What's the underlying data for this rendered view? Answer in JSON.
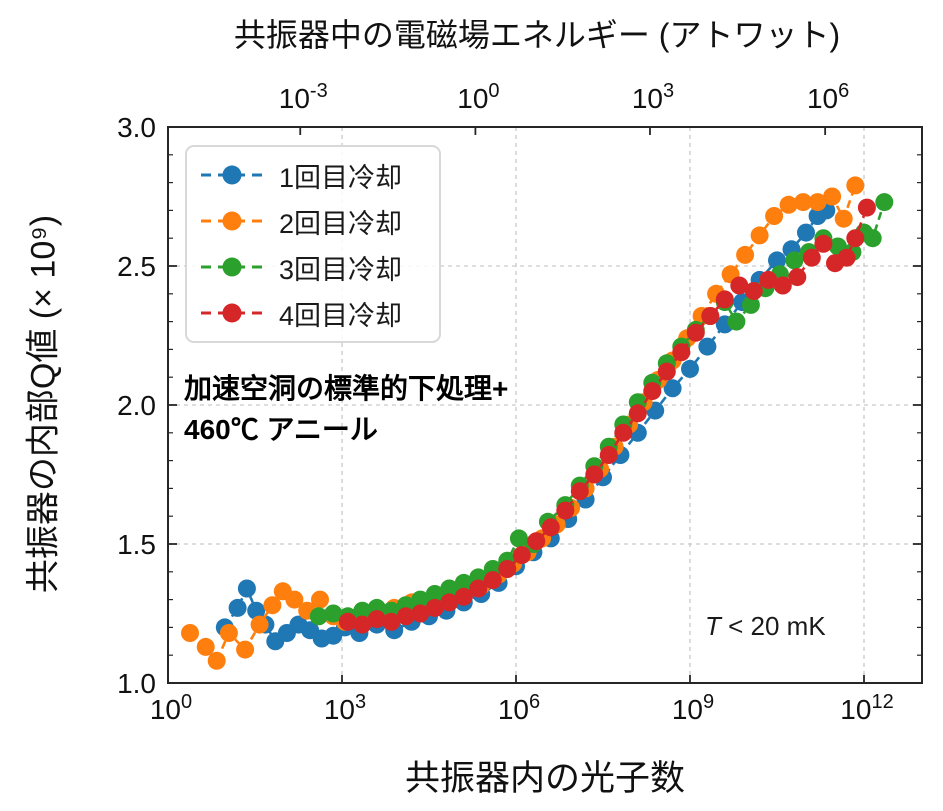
{
  "chart_data": {
    "type": "scatter",
    "x_scale": "log",
    "xlim_decades": [
      0,
      13
    ],
    "ylim": [
      1.0,
      3.0
    ],
    "grid": true,
    "legend_position": "upper left",
    "x_axis_bottom": {
      "label": "共振器内の光子数",
      "tick_base": 10,
      "tick_exponents": [
        0,
        3,
        6,
        9,
        12
      ]
    },
    "x_axis_top": {
      "label": "共振器中の電磁場エネルギー (アトワット)",
      "tick_base": 10,
      "tick_exponents": [
        -3,
        0,
        3,
        6
      ],
      "tick_positions_bottom_decades": [
        2.28,
        5.3,
        8.31,
        11.33
      ]
    },
    "y_axis": {
      "label": "共振器の内部Q値 (× 10⁹)",
      "ticks": [
        1.0,
        1.5,
        2.0,
        2.5,
        3.0
      ],
      "minor_step": 0.1
    },
    "annotations": {
      "treatment_line1": "加速空洞の標準的下処理+",
      "treatment_line2": "460℃ アニール",
      "temp_symbol": "T",
      "temp_rest": " < 20 mK"
    },
    "series": [
      {
        "name": "1回目冷却",
        "color": "#1f77b4",
        "marker": "circle",
        "linestyle": "dashed",
        "points_log10x_y": [
          [
            0.98,
            1.2
          ],
          [
            1.2,
            1.27
          ],
          [
            1.36,
            1.34
          ],
          [
            1.52,
            1.26
          ],
          [
            1.68,
            1.21
          ],
          [
            1.85,
            1.15
          ],
          [
            2.05,
            1.18
          ],
          [
            2.25,
            1.21
          ],
          [
            2.45,
            1.19
          ],
          [
            2.65,
            1.16
          ],
          [
            2.85,
            1.17
          ],
          [
            3.05,
            1.2
          ],
          [
            3.3,
            1.18
          ],
          [
            3.6,
            1.21
          ],
          [
            3.9,
            1.19
          ],
          [
            4.2,
            1.22
          ],
          [
            4.5,
            1.24
          ],
          [
            4.8,
            1.26
          ],
          [
            5.1,
            1.29
          ],
          [
            5.4,
            1.32
          ],
          [
            5.7,
            1.36
          ],
          [
            6.0,
            1.42
          ],
          [
            6.3,
            1.47
          ],
          [
            6.6,
            1.52
          ],
          [
            6.9,
            1.59
          ],
          [
            7.2,
            1.66
          ],
          [
            7.5,
            1.74
          ],
          [
            7.8,
            1.82
          ],
          [
            8.1,
            1.9
          ],
          [
            8.4,
            1.98
          ],
          [
            8.7,
            2.06
          ],
          [
            9.0,
            2.13
          ],
          [
            9.3,
            2.21
          ],
          [
            9.6,
            2.29
          ],
          [
            9.9,
            2.37
          ],
          [
            10.2,
            2.45
          ],
          [
            10.5,
            2.52
          ],
          [
            10.75,
            2.56
          ],
          [
            11.0,
            2.62
          ],
          [
            11.2,
            2.68
          ],
          [
            11.35,
            2.7
          ]
        ]
      },
      {
        "name": "2回目冷却",
        "color": "#ff7f0e",
        "marker": "circle",
        "linestyle": "dashed",
        "points_log10x_y": [
          [
            0.38,
            1.18
          ],
          [
            0.65,
            1.13
          ],
          [
            0.84,
            1.08
          ],
          [
            1.05,
            1.18
          ],
          [
            1.33,
            1.12
          ],
          [
            1.58,
            1.21
          ],
          [
            1.8,
            1.28
          ],
          [
            1.98,
            1.33
          ],
          [
            2.18,
            1.3
          ],
          [
            2.4,
            1.26
          ],
          [
            2.62,
            1.3
          ],
          [
            2.85,
            1.24
          ],
          [
            3.05,
            1.22
          ],
          [
            3.3,
            1.24
          ],
          [
            3.6,
            1.25
          ],
          [
            3.9,
            1.27
          ],
          [
            4.2,
            1.29
          ],
          [
            4.5,
            1.28
          ],
          [
            4.8,
            1.3
          ],
          [
            5.1,
            1.32
          ],
          [
            5.4,
            1.35
          ],
          [
            5.7,
            1.39
          ],
          [
            5.95,
            1.43
          ],
          [
            6.2,
            1.47
          ],
          [
            6.45,
            1.52
          ],
          [
            6.7,
            1.57
          ],
          [
            6.95,
            1.63
          ],
          [
            7.2,
            1.7
          ],
          [
            7.45,
            1.77
          ],
          [
            7.7,
            1.85
          ],
          [
            7.95,
            1.93
          ],
          [
            8.2,
            2.01
          ],
          [
            8.45,
            2.09
          ],
          [
            8.7,
            2.16
          ],
          [
            8.95,
            2.24
          ],
          [
            9.2,
            2.32
          ],
          [
            9.45,
            2.4
          ],
          [
            9.7,
            2.47
          ],
          [
            9.95,
            2.54
          ],
          [
            10.2,
            2.61
          ],
          [
            10.45,
            2.68
          ],
          [
            10.7,
            2.72
          ],
          [
            10.95,
            2.73
          ],
          [
            11.2,
            2.73
          ],
          [
            11.45,
            2.75
          ],
          [
            11.65,
            2.67
          ],
          [
            11.85,
            2.79
          ]
        ]
      },
      {
        "name": "3回目冷却",
        "color": "#2ca02c",
        "marker": "circle",
        "linestyle": "dashed",
        "points_log10x_y": [
          [
            2.6,
            1.24
          ],
          [
            2.85,
            1.25
          ],
          [
            3.1,
            1.24
          ],
          [
            3.35,
            1.26
          ],
          [
            3.6,
            1.27
          ],
          [
            3.85,
            1.26
          ],
          [
            4.1,
            1.28
          ],
          [
            4.35,
            1.3
          ],
          [
            4.6,
            1.32
          ],
          [
            4.85,
            1.34
          ],
          [
            5.1,
            1.36
          ],
          [
            5.35,
            1.38
          ],
          [
            5.6,
            1.41
          ],
          [
            5.85,
            1.44
          ],
          [
            6.05,
            1.52
          ],
          [
            6.3,
            1.5
          ],
          [
            6.55,
            1.58
          ],
          [
            6.85,
            1.64
          ],
          [
            7.1,
            1.71
          ],
          [
            7.35,
            1.78
          ],
          [
            7.6,
            1.85
          ],
          [
            7.85,
            1.93
          ],
          [
            8.1,
            2.01
          ],
          [
            8.35,
            2.08
          ],
          [
            8.6,
            2.15
          ],
          [
            8.85,
            2.21
          ],
          [
            9.1,
            2.27
          ],
          [
            9.35,
            2.32
          ],
          [
            9.6,
            2.37
          ],
          [
            9.8,
            2.3
          ],
          [
            10.05,
            2.36
          ],
          [
            10.3,
            2.42
          ],
          [
            10.55,
            2.47
          ],
          [
            10.8,
            2.52
          ],
          [
            11.05,
            2.55
          ],
          [
            11.3,
            2.6
          ],
          [
            11.55,
            2.57
          ],
          [
            11.8,
            2.55
          ],
          [
            12.0,
            2.62
          ],
          [
            12.15,
            2.6
          ],
          [
            12.35,
            2.73
          ]
        ]
      },
      {
        "name": "4回目冷却",
        "color": "#d62728",
        "marker": "circle",
        "linestyle": "dashed",
        "points_log10x_y": [
          [
            3.1,
            1.22
          ],
          [
            3.35,
            1.21
          ],
          [
            3.6,
            1.23
          ],
          [
            3.85,
            1.22
          ],
          [
            4.1,
            1.24
          ],
          [
            4.35,
            1.25
          ],
          [
            4.6,
            1.27
          ],
          [
            4.85,
            1.29
          ],
          [
            5.1,
            1.31
          ],
          [
            5.35,
            1.34
          ],
          [
            5.6,
            1.37
          ],
          [
            5.85,
            1.41
          ],
          [
            6.1,
            1.46
          ],
          [
            6.35,
            1.51
          ],
          [
            6.6,
            1.56
          ],
          [
            6.85,
            1.62
          ],
          [
            7.1,
            1.69
          ],
          [
            7.35,
            1.75
          ],
          [
            7.6,
            1.82
          ],
          [
            7.85,
            1.9
          ],
          [
            8.1,
            1.97
          ],
          [
            8.35,
            2.05
          ],
          [
            8.6,
            2.12
          ],
          [
            8.85,
            2.19
          ],
          [
            9.1,
            2.26
          ],
          [
            9.35,
            2.32
          ],
          [
            9.6,
            2.38
          ],
          [
            9.85,
            2.43
          ],
          [
            10.1,
            2.41
          ],
          [
            10.35,
            2.45
          ],
          [
            10.6,
            2.43
          ],
          [
            10.85,
            2.46
          ],
          [
            11.1,
            2.53
          ],
          [
            11.3,
            2.58
          ],
          [
            11.5,
            2.51
          ],
          [
            11.7,
            2.53
          ],
          [
            11.85,
            2.6
          ],
          [
            12.05,
            2.71
          ]
        ]
      }
    ],
    "style": {
      "grid_color": "#c9c9c9",
      "spine_color": "#262626",
      "text_color": "#111111",
      "marker_radius": 9
    }
  }
}
